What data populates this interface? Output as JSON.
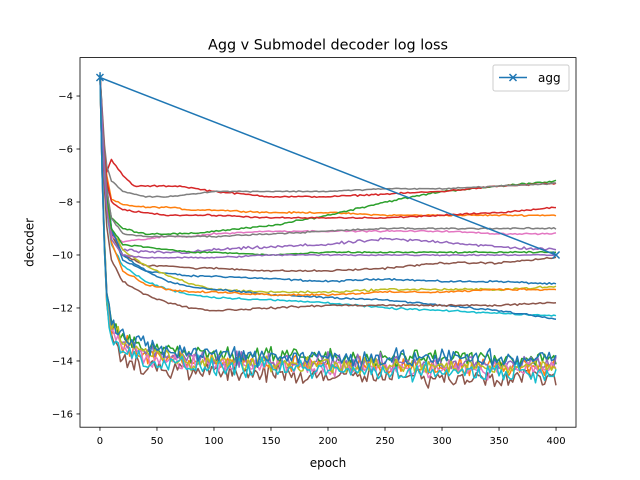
{
  "chart_data": {
    "type": "line",
    "title": "Agg v Submodel decoder log loss",
    "xlabel": "epoch",
    "ylabel": "decoder",
    "xlim": [
      -17.5,
      417.5
    ],
    "ylim": [
      -16.5,
      -2.55
    ],
    "xticks": [
      0,
      50,
      100,
      150,
      200,
      250,
      300,
      350,
      400
    ],
    "yticks": [
      -16,
      -14,
      -12,
      -10,
      -8,
      -6,
      -4
    ],
    "grid": false,
    "legend": {
      "location": "top-right",
      "entries": [
        "agg"
      ]
    },
    "agg_series": {
      "name": "agg",
      "color": "#1f77b4",
      "marker": "x",
      "x": [
        0,
        400
      ],
      "y": [
        -3.3,
        -10.0
      ]
    },
    "submodel_series": [
      {
        "color": "#1f77b4",
        "x": [
          0,
          5,
          10,
          20,
          40,
          60,
          80,
          100,
          150,
          200,
          250,
          300,
          350,
          400
        ],
        "y": [
          -3.1,
          -7.0,
          -9.0,
          -10.2,
          -10.6,
          -10.7,
          -10.8,
          -10.8,
          -10.9,
          -11.0,
          -10.9,
          -11.0,
          -11.0,
          -11.1
        ],
        "noise": 0.05
      },
      {
        "color": "#ff7f0e",
        "x": [
          0,
          5,
          10,
          20,
          40,
          60,
          80,
          100,
          150,
          200,
          250,
          300,
          350,
          400
        ],
        "y": [
          -3.3,
          -6.8,
          -7.9,
          -8.1,
          -8.2,
          -8.2,
          -8.3,
          -8.3,
          -8.4,
          -8.4,
          -8.5,
          -8.5,
          -8.5,
          -8.5
        ],
        "noise": 0.04
      },
      {
        "color": "#2ca02c",
        "x": [
          0,
          5,
          10,
          20,
          40,
          60,
          80,
          100,
          150,
          200,
          250,
          300,
          350,
          400
        ],
        "y": [
          -3.3,
          -7.5,
          -8.6,
          -9.0,
          -9.2,
          -9.2,
          -9.2,
          -9.1,
          -8.9,
          -8.5,
          -8.0,
          -7.6,
          -7.4,
          -7.2
        ],
        "noise": 0.05
      },
      {
        "color": "#d62728",
        "x": [
          0,
          5,
          10,
          20,
          30,
          50,
          70,
          100,
          150,
          200,
          250,
          300,
          350,
          400
        ],
        "y": [
          -3.2,
          -7.0,
          -6.4,
          -7.0,
          -7.4,
          -7.4,
          -7.4,
          -7.6,
          -7.8,
          -7.8,
          -7.7,
          -7.6,
          -7.4,
          -7.3
        ],
        "noise": 0.04
      },
      {
        "color": "#9467bd",
        "x": [
          0,
          5,
          10,
          20,
          40,
          60,
          80,
          100,
          150,
          200,
          250,
          300,
          350,
          400
        ],
        "y": [
          -3.2,
          -7.8,
          -9.2,
          -9.8,
          -9.9,
          -9.9,
          -9.9,
          -9.8,
          -9.7,
          -9.6,
          -9.4,
          -9.5,
          -9.7,
          -9.8
        ],
        "noise": 0.08
      },
      {
        "color": "#8c564b",
        "x": [
          0,
          5,
          10,
          20,
          40,
          60,
          80,
          100,
          150,
          200,
          250,
          300,
          350,
          400
        ],
        "y": [
          -3.2,
          -7.8,
          -9.2,
          -10.0,
          -10.4,
          -10.4,
          -10.5,
          -10.5,
          -10.6,
          -10.6,
          -10.5,
          -10.3,
          -10.3,
          -10.1
        ],
        "noise": 0.05
      },
      {
        "color": "#e377c2",
        "x": [
          0,
          5,
          10,
          20,
          40,
          60,
          80,
          100,
          150,
          200,
          250,
          300,
          350,
          400
        ],
        "y": [
          -3.2,
          -8.0,
          -9.3,
          -9.5,
          -9.4,
          -9.3,
          -9.3,
          -9.2,
          -9.1,
          -9.1,
          -9.1,
          -9.1,
          -9.2,
          -9.2
        ],
        "noise": 0.04
      },
      {
        "color": "#7f7f7f",
        "x": [
          0,
          5,
          10,
          20,
          40,
          60,
          80,
          100,
          150,
          200,
          250,
          300,
          350,
          400
        ],
        "y": [
          -3.2,
          -6.5,
          -7.2,
          -7.6,
          -7.8,
          -7.8,
          -7.7,
          -7.6,
          -7.6,
          -7.6,
          -7.5,
          -7.5,
          -7.4,
          -7.3
        ],
        "noise": 0.03
      },
      {
        "color": "#bcbd22",
        "x": [
          0,
          5,
          10,
          20,
          40,
          60,
          80,
          100,
          150,
          200,
          250,
          300,
          350,
          400
        ],
        "y": [
          -3.3,
          -7.5,
          -9.0,
          -9.8,
          -10.4,
          -10.8,
          -11.1,
          -11.3,
          -11.4,
          -11.4,
          -11.3,
          -11.3,
          -11.3,
          -11.2
        ],
        "noise": 0.06
      },
      {
        "color": "#17becf",
        "x": [
          0,
          5,
          10,
          20,
          40,
          60,
          80,
          100,
          150,
          200,
          250,
          300,
          350,
          400
        ],
        "y": [
          -3.3,
          -8.0,
          -9.6,
          -10.4,
          -11.0,
          -11.3,
          -11.5,
          -11.6,
          -11.7,
          -11.8,
          -12.0,
          -12.1,
          -12.2,
          -12.3
        ],
        "noise": 0.05
      },
      {
        "color": "#1f77b4",
        "x": [
          0,
          5,
          10,
          20,
          40,
          60,
          80,
          100,
          150,
          200,
          250,
          300,
          350,
          400
        ],
        "y": [
          -3.2,
          -7.2,
          -9.0,
          -10.0,
          -10.6,
          -11.0,
          -11.2,
          -11.3,
          -11.5,
          -11.6,
          -11.7,
          -11.9,
          -12.1,
          -12.4
        ],
        "noise": 0.05
      },
      {
        "color": "#ff7f0e",
        "x": [
          0,
          5,
          10,
          20,
          40,
          60,
          80,
          100,
          150,
          200,
          250,
          300,
          350,
          400
        ],
        "y": [
          -3.2,
          -7.8,
          -9.5,
          -10.6,
          -11.1,
          -11.3,
          -11.4,
          -11.4,
          -11.5,
          -11.5,
          -11.4,
          -11.4,
          -11.3,
          -11.3
        ],
        "noise": 0.05
      },
      {
        "color": "#2ca02c",
        "x": [
          0,
          5,
          10,
          20,
          40,
          60,
          80,
          100,
          150,
          200,
          250,
          300,
          350,
          400
        ],
        "y": [
          -3.2,
          -7.5,
          -9.0,
          -9.6,
          -9.7,
          -9.8,
          -9.9,
          -9.9,
          -10.0,
          -9.9,
          -9.9,
          -9.9,
          -9.9,
          -9.9
        ],
        "noise": 0.04
      },
      {
        "color": "#d62728",
        "x": [
          0,
          5,
          10,
          20,
          40,
          60,
          80,
          100,
          150,
          200,
          250,
          300,
          350,
          400
        ],
        "y": [
          -3.2,
          -7.0,
          -8.0,
          -8.3,
          -8.4,
          -8.5,
          -8.5,
          -8.5,
          -8.6,
          -8.6,
          -8.6,
          -8.5,
          -8.4,
          -8.2
        ],
        "noise": 0.04
      },
      {
        "color": "#8c564b",
        "x": [
          0,
          5,
          10,
          20,
          40,
          60,
          80,
          100,
          150,
          200,
          250,
          300,
          350,
          400
        ],
        "y": [
          -3.2,
          -8.6,
          -10.2,
          -11.0,
          -11.5,
          -11.8,
          -12.0,
          -12.1,
          -12.0,
          -11.9,
          -11.9,
          -11.9,
          -11.9,
          -11.8
        ],
        "noise": 0.05
      },
      {
        "color": "#7f7f7f",
        "x": [
          0,
          5,
          10,
          20,
          40,
          60,
          80,
          100,
          150,
          200,
          250,
          300,
          350,
          400
        ],
        "y": [
          -3.2,
          -7.3,
          -8.6,
          -9.2,
          -9.3,
          -9.3,
          -9.3,
          -9.3,
          -9.2,
          -9.1,
          -9.0,
          -9.0,
          -9.0,
          -9.0
        ],
        "noise": 0.04
      },
      {
        "color": "#9467bd",
        "x": [
          0,
          5,
          10,
          20,
          40,
          60,
          80,
          100,
          150,
          200,
          250,
          300,
          350,
          400
        ],
        "y": [
          -3.2,
          -8.0,
          -9.4,
          -10.0,
          -10.1,
          -10.1,
          -10.1,
          -10.1,
          -10.0,
          -10.0,
          -10.0,
          -10.0,
          -10.0,
          -10.0
        ],
        "noise": 0.04
      }
    ],
    "noisy_series": [
      {
        "color": "#8c564b",
        "x": [
          0,
          3,
          6,
          10,
          20,
          40,
          80,
          150,
          250,
          400
        ],
        "y": [
          -3.2,
          -9.0,
          -12.0,
          -13.2,
          -13.8,
          -14.2,
          -14.4,
          -14.5,
          -14.6,
          -14.6
        ],
        "noise": 0.55
      },
      {
        "color": "#ff7f0e",
        "x": [
          0,
          3,
          6,
          10,
          20,
          40,
          80,
          150,
          250,
          400
        ],
        "y": [
          -3.2,
          -9.0,
          -11.6,
          -12.8,
          -13.4,
          -13.8,
          -14.0,
          -14.1,
          -14.2,
          -14.2
        ],
        "noise": 0.5
      },
      {
        "color": "#2ca02c",
        "x": [
          0,
          3,
          6,
          10,
          20,
          40,
          80,
          150,
          250,
          400
        ],
        "y": [
          -3.2,
          -8.5,
          -11.2,
          -12.4,
          -13.1,
          -13.5,
          -13.7,
          -13.8,
          -13.9,
          -13.9
        ],
        "noise": 0.5
      },
      {
        "color": "#9467bd",
        "x": [
          0,
          3,
          6,
          10,
          20,
          40,
          80,
          150,
          250,
          400
        ],
        "y": [
          -3.2,
          -8.8,
          -11.5,
          -12.7,
          -13.3,
          -13.7,
          -13.9,
          -14.0,
          -14.1,
          -14.1
        ],
        "noise": 0.45
      },
      {
        "color": "#e377c2",
        "x": [
          0,
          3,
          6,
          10,
          20,
          40,
          80,
          150,
          250,
          400
        ],
        "y": [
          -3.2,
          -8.9,
          -11.6,
          -12.9,
          -13.5,
          -13.9,
          -14.1,
          -14.2,
          -14.3,
          -14.3
        ],
        "noise": 0.45
      },
      {
        "color": "#bcbd22",
        "x": [
          0,
          3,
          6,
          10,
          20,
          40,
          80,
          150,
          250,
          400
        ],
        "y": [
          -3.2,
          -8.7,
          -11.4,
          -12.6,
          -13.2,
          -13.7,
          -14.0,
          -14.1,
          -14.2,
          -14.2
        ],
        "noise": 0.45
      },
      {
        "color": "#17becf",
        "x": [
          0,
          3,
          6,
          10,
          20,
          40,
          80,
          150,
          250,
          400
        ],
        "y": [
          -3.2,
          -9.0,
          -11.8,
          -13.0,
          -13.6,
          -14.0,
          -14.2,
          -14.3,
          -14.4,
          -14.4
        ],
        "noise": 0.5
      },
      {
        "color": "#1f77b4",
        "x": [
          0,
          3,
          6,
          10,
          20,
          40,
          80,
          150,
          250,
          400
        ],
        "y": [
          -3.2,
          -8.6,
          -11.3,
          -12.5,
          -13.1,
          -13.5,
          -13.7,
          -13.8,
          -13.9,
          -13.9
        ],
        "noise": 0.55
      }
    ]
  }
}
